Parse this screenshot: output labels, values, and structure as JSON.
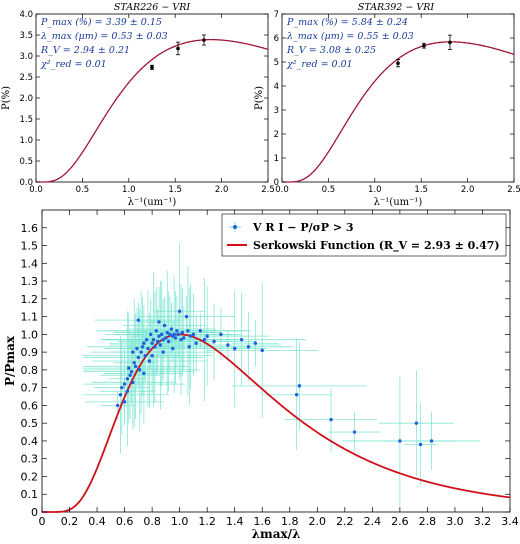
{
  "chart_data": [
    {
      "type": "line",
      "title": "STAR226 − VRI",
      "xlabel": "λ⁻¹(um⁻¹)",
      "ylabel": "P(%)",
      "xlim": [
        0,
        2.5
      ],
      "ylim": [
        0,
        4
      ],
      "xticks": [
        "0.0",
        "0.5",
        "1.0",
        "1.5",
        "2.0",
        "2.5"
      ],
      "yticks": [
        "0.0",
        "0.5",
        "1.0",
        "1.5",
        "2.0",
        "2.5",
        "3.0",
        "3.5",
        "4.0"
      ],
      "annotations": [
        "P_max (%) = 3.39 ± 0.15",
        "λ_max (μm) = 0.53 ± 0.03",
        "R_V = 2.94 ± 0.21",
        "χ²_red = 0.01"
      ],
      "model": {
        "pmax": 3.39,
        "lmax": 0.53
      },
      "points": [
        {
          "x": 1.25,
          "y": 2.73,
          "err": 0.05
        },
        {
          "x": 1.53,
          "y": 3.18,
          "err": 0.15
        },
        {
          "x": 1.81,
          "y": 3.38,
          "err": 0.12
        }
      ],
      "grid": false
    },
    {
      "type": "line",
      "title": "STAR392 − VRI",
      "xlabel": "λ⁻¹(um⁻¹)",
      "ylabel": "P(%)",
      "xlim": [
        0,
        2.5
      ],
      "ylim": [
        0,
        7
      ],
      "xticks": [
        "0.0",
        "0.5",
        "1.0",
        "1.5",
        "2.0",
        "2.5"
      ],
      "yticks": [
        "0",
        "1",
        "2",
        "3",
        "4",
        "5",
        "6",
        "7"
      ],
      "annotations": [
        "P_max (%) = 5.84 ± 0.24",
        "λ_max (μm) = 0.55 ± 0.03",
        "R_V = 3.08 ± 0.25",
        "χ²_red = 0.01"
      ],
      "model": {
        "pmax": 5.84,
        "lmax": 0.55
      },
      "points": [
        {
          "x": 1.25,
          "y": 4.95,
          "err": 0.15
        },
        {
          "x": 1.53,
          "y": 5.68,
          "err": 0.1
        },
        {
          "x": 1.81,
          "y": 5.82,
          "err": 0.3
        }
      ],
      "grid": false
    },
    {
      "type": "scatter",
      "xlabel": "λmax/λ",
      "ylabel": "P/Pmax",
      "xlim": [
        0,
        3.4
      ],
      "ylim": [
        0,
        1.7
      ],
      "xticks": [
        "0",
        "0.2",
        "0.4",
        "0.6",
        "0.8",
        "1.0",
        "1.2",
        "1.4",
        "1.6",
        "1.8",
        "2.0",
        "2.2",
        "2.4",
        "2.6",
        "2.8",
        "3.0",
        "3.2",
        "3.4"
      ],
      "yticks": [
        "0",
        "0.1",
        "0.2",
        "0.3",
        "0.4",
        "0.5",
        "0.6",
        "0.7",
        "0.8",
        "0.9",
        "1.0",
        "1.1",
        "1.2",
        "1.3",
        "1.4",
        "1.5",
        "1.6"
      ],
      "legend_position": "top-right",
      "series": [
        {
          "name": "V R I − P/σP > 3",
          "color": "#1f5fe0",
          "error_color": "#6fe3cf"
        },
        {
          "name": "Serkowski Function (R_V = 2.93 ± 0.47)",
          "color": "#d0101a"
        }
      ],
      "points": [
        {
          "x": 0.55,
          "y": 0.6
        },
        {
          "x": 0.57,
          "y": 0.66
        },
        {
          "x": 0.58,
          "y": 0.7
        },
        {
          "x": 0.6,
          "y": 0.72
        },
        {
          "x": 0.6,
          "y": 0.62
        },
        {
          "x": 0.62,
          "y": 0.75
        },
        {
          "x": 0.63,
          "y": 0.81
        },
        {
          "x": 0.64,
          "y": 0.77
        },
        {
          "x": 0.65,
          "y": 0.79
        },
        {
          "x": 0.66,
          "y": 0.9
        },
        {
          "x": 0.67,
          "y": 0.84
        },
        {
          "x": 0.68,
          "y": 0.82
        },
        {
          "x": 0.69,
          "y": 0.92
        },
        {
          "x": 0.7,
          "y": 0.87
        },
        {
          "x": 0.7,
          "y": 1.08
        },
        {
          "x": 0.72,
          "y": 0.9
        },
        {
          "x": 0.73,
          "y": 0.93
        },
        {
          "x": 0.74,
          "y": 0.95
        },
        {
          "x": 0.75,
          "y": 0.88
        },
        {
          "x": 0.76,
          "y": 0.97
        },
        {
          "x": 0.77,
          "y": 0.92
        },
        {
          "x": 0.78,
          "y": 0.85
        },
        {
          "x": 0.79,
          "y": 1.0
        },
        {
          "x": 0.8,
          "y": 0.95
        },
        {
          "x": 0.81,
          "y": 0.97
        },
        {
          "x": 0.82,
          "y": 0.93
        },
        {
          "x": 0.83,
          "y": 1.02
        },
        {
          "x": 0.84,
          "y": 0.96
        },
        {
          "x": 0.85,
          "y": 0.99
        },
        {
          "x": 0.86,
          "y": 0.94
        },
        {
          "x": 0.87,
          "y": 1.0
        },
        {
          "x": 0.88,
          "y": 0.97
        },
        {
          "x": 0.89,
          "y": 1.05
        },
        {
          "x": 0.9,
          "y": 0.98
        },
        {
          "x": 0.91,
          "y": 1.01
        },
        {
          "x": 0.92,
          "y": 0.96
        },
        {
          "x": 0.93,
          "y": 1.0
        },
        {
          "x": 0.94,
          "y": 1.03
        },
        {
          "x": 0.95,
          "y": 0.99
        },
        {
          "x": 0.96,
          "y": 1.0
        },
        {
          "x": 0.97,
          "y": 0.98
        },
        {
          "x": 0.98,
          "y": 1.02
        },
        {
          "x": 0.99,
          "y": 1.0
        },
        {
          "x": 1.0,
          "y": 1.13
        },
        {
          "x": 1.01,
          "y": 0.97
        },
        {
          "x": 1.02,
          "y": 1.01
        },
        {
          "x": 1.03,
          "y": 0.98
        },
        {
          "x": 1.05,
          "y": 1.1
        },
        {
          "x": 1.06,
          "y": 1.02
        },
        {
          "x": 1.08,
          "y": 0.99
        },
        {
          "x": 1.1,
          "y": 1.0
        },
        {
          "x": 1.12,
          "y": 0.95
        },
        {
          "x": 1.15,
          "y": 1.02
        },
        {
          "x": 1.18,
          "y": 0.97
        },
        {
          "x": 1.2,
          "y": 0.99
        },
        {
          "x": 1.25,
          "y": 0.96
        },
        {
          "x": 1.3,
          "y": 1.0
        },
        {
          "x": 1.35,
          "y": 0.94
        },
        {
          "x": 1.4,
          "y": 0.92
        },
        {
          "x": 1.45,
          "y": 0.97
        },
        {
          "x": 1.5,
          "y": 0.93
        },
        {
          "x": 1.55,
          "y": 0.95
        },
        {
          "x": 1.6,
          "y": 0.91
        },
        {
          "x": 1.85,
          "y": 0.66
        },
        {
          "x": 1.87,
          "y": 0.71
        },
        {
          "x": 2.1,
          "y": 0.52
        },
        {
          "x": 2.27,
          "y": 0.45
        },
        {
          "x": 2.6,
          "y": 0.4
        },
        {
          "x": 2.72,
          "y": 0.5
        },
        {
          "x": 2.75,
          "y": 0.38
        },
        {
          "x": 2.83,
          "y": 0.4
        },
        {
          "x": 0.62,
          "y": 0.68
        },
        {
          "x": 0.71,
          "y": 0.8
        },
        {
          "x": 0.74,
          "y": 0.78
        },
        {
          "x": 0.8,
          "y": 0.88
        },
        {
          "x": 0.88,
          "y": 0.9
        },
        {
          "x": 0.95,
          "y": 0.92
        },
        {
          "x": 1.07,
          "y": 0.93
        },
        {
          "x": 0.66,
          "y": 0.73
        },
        {
          "x": 0.85,
          "y": 1.07
        }
      ],
      "grid": false
    }
  ]
}
